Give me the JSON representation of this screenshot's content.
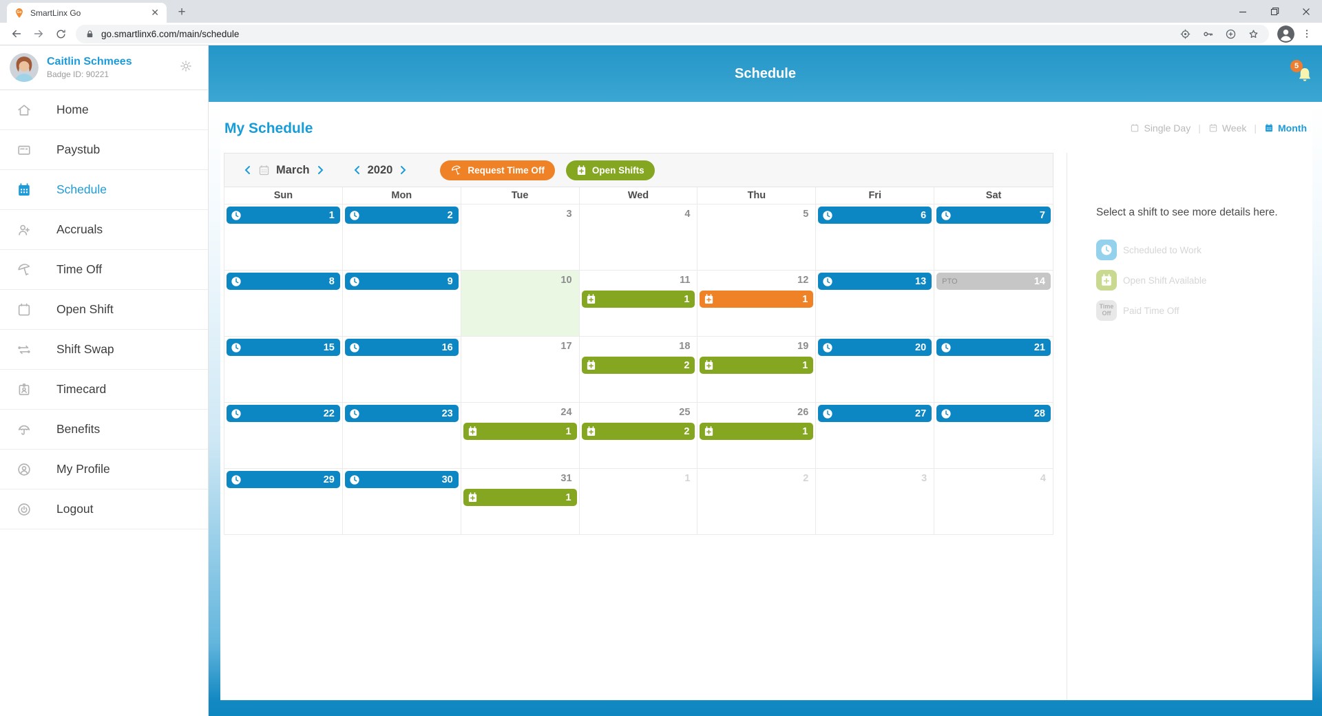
{
  "browser": {
    "tab_title": "SmartLinx Go",
    "url": "go.smartlinx6.com/main/schedule"
  },
  "sidebar": {
    "user": {
      "name": "Caitlin Schmees",
      "badge": "Badge ID: 90221"
    },
    "items": [
      {
        "label": "Home",
        "icon": "home-icon",
        "active": false
      },
      {
        "label": "Paystub",
        "icon": "paystub-icon",
        "active": false
      },
      {
        "label": "Schedule",
        "icon": "calendar-filled-icon",
        "active": true
      },
      {
        "label": "Accruals",
        "icon": "user-plus-icon",
        "active": false
      },
      {
        "label": "Time Off",
        "icon": "beach-umbrella-icon",
        "active": false
      },
      {
        "label": "Open Shift",
        "icon": "calendar-outline-icon",
        "active": false
      },
      {
        "label": "Shift Swap",
        "icon": "swap-arrows-icon",
        "active": false
      },
      {
        "label": "Timecard",
        "icon": "id-badge-icon",
        "active": false
      },
      {
        "label": "Benefits",
        "icon": "umbrella-icon",
        "active": false
      },
      {
        "label": "My Profile",
        "icon": "user-circle-icon",
        "active": false
      },
      {
        "label": "Logout",
        "icon": "power-circle-icon",
        "active": false
      }
    ]
  },
  "header": {
    "title": "Schedule",
    "notification_count": "5"
  },
  "main": {
    "title": "My Schedule",
    "views": [
      {
        "label": "Single Day",
        "icon": "calendar-outline-icon",
        "active": false
      },
      {
        "label": "Week",
        "icon": "calendar-week-icon",
        "active": false
      },
      {
        "label": "Month",
        "icon": "calendar-filled-icon",
        "active": true
      }
    ],
    "toolbar": {
      "month": "March",
      "year": "2020",
      "request_time_off": "Request Time Off",
      "open_shifts": "Open Shifts"
    }
  },
  "calendar": {
    "day_headers": [
      "Sun",
      "Mon",
      "Tue",
      "Wed",
      "Thu",
      "Fri",
      "Sat"
    ],
    "weeks": [
      [
        {
          "date": "1",
          "type": "scheduled"
        },
        {
          "date": "2",
          "type": "scheduled"
        },
        {
          "date": "3",
          "type": "plain"
        },
        {
          "date": "4",
          "type": "plain"
        },
        {
          "date": "5",
          "type": "plain"
        },
        {
          "date": "6",
          "type": "scheduled"
        },
        {
          "date": "7",
          "type": "scheduled"
        }
      ],
      [
        {
          "date": "8",
          "type": "scheduled"
        },
        {
          "date": "9",
          "type": "scheduled"
        },
        {
          "date": "10",
          "type": "plain",
          "highlight": true
        },
        {
          "date": "11",
          "type": "open",
          "count": "1"
        },
        {
          "date": "12",
          "type": "request",
          "count": "1"
        },
        {
          "date": "13",
          "type": "scheduled"
        },
        {
          "date": "14",
          "type": "pto",
          "pto_label": "PTO"
        }
      ],
      [
        {
          "date": "15",
          "type": "scheduled"
        },
        {
          "date": "16",
          "type": "scheduled"
        },
        {
          "date": "17",
          "type": "plain"
        },
        {
          "date": "18",
          "type": "open",
          "count": "2"
        },
        {
          "date": "19",
          "type": "open",
          "count": "1"
        },
        {
          "date": "20",
          "type": "scheduled"
        },
        {
          "date": "21",
          "type": "scheduled"
        }
      ],
      [
        {
          "date": "22",
          "type": "scheduled"
        },
        {
          "date": "23",
          "type": "scheduled"
        },
        {
          "date": "24",
          "type": "open",
          "count": "1"
        },
        {
          "date": "25",
          "type": "open",
          "count": "2"
        },
        {
          "date": "26",
          "type": "open",
          "count": "1"
        },
        {
          "date": "27",
          "type": "scheduled"
        },
        {
          "date": "28",
          "type": "scheduled"
        }
      ],
      [
        {
          "date": "29",
          "type": "scheduled"
        },
        {
          "date": "30",
          "type": "scheduled"
        },
        {
          "date": "31",
          "type": "open",
          "count": "1"
        },
        {
          "date": "1",
          "type": "adjacent"
        },
        {
          "date": "2",
          "type": "adjacent"
        },
        {
          "date": "3",
          "type": "adjacent"
        },
        {
          "date": "4",
          "type": "adjacent"
        }
      ]
    ]
  },
  "details_panel": {
    "placeholder": "Select a shift to see more details here.",
    "pto_chip_lines": [
      "Time",
      "Off"
    ],
    "legend": [
      {
        "label": "Scheduled to Work",
        "type": "scheduled",
        "icon": "clock-icon",
        "color": "#93d1ec"
      },
      {
        "label": "Open Shift Available",
        "type": "open",
        "icon": "calendar-plus-icon",
        "color": "#c9da90"
      },
      {
        "label": "Paid Time Off",
        "type": "pto",
        "icon": "time-off-chip",
        "color": "#e8e8e8"
      }
    ]
  },
  "colors": {
    "header_blue_top": "#2496c8",
    "header_blue_bottom": "#3ba6d2",
    "footer_blue": "#0e86c0",
    "accent_blue": "#1d9bd9",
    "shift_blue": "#0d87c3",
    "open_green": "#85a620",
    "request_orange": "#ef8226",
    "pto_gray": "#c6c6c6",
    "today_green_bg": "#e9f7e3",
    "notification_orange": "#ed7d31"
  }
}
